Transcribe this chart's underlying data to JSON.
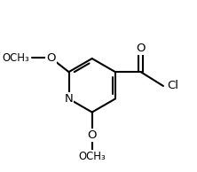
{
  "bg_color": "#ffffff",
  "bond_color": "#000000",
  "bond_lw": 1.5,
  "dbo": 0.018,
  "fs": 9.5,
  "figsize": [
    2.22,
    1.94
  ],
  "dpi": 100,
  "xlim": [
    0.0,
    1.15
  ],
  "ylim": [
    0.0,
    1.0
  ]
}
